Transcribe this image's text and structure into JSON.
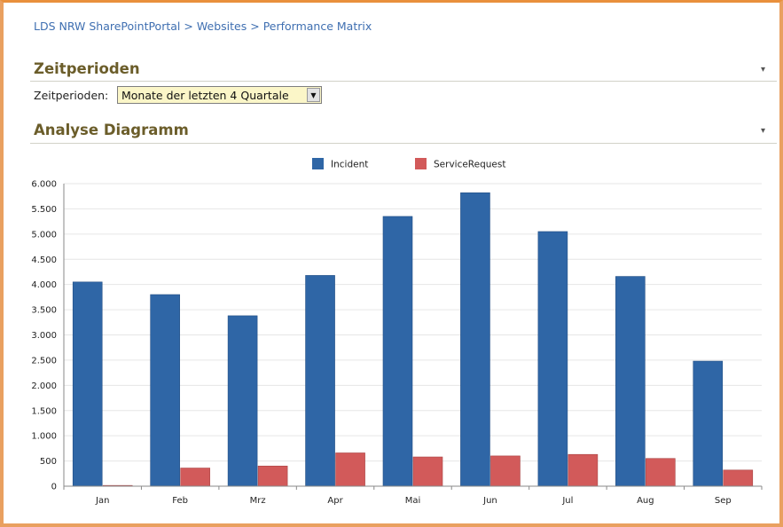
{
  "breadcrumb": [
    "LDS NRW SharePointPortal",
    "Websites",
    "Performance Matrix"
  ],
  "breadcrumb_separator": ">",
  "sections": {
    "periods": {
      "title": "Zeitperioden",
      "collapse_glyph": "▾"
    },
    "analysis": {
      "title": "Analyse Diagramm",
      "collapse_glyph": "▾"
    }
  },
  "period_filter": {
    "label": "Zeitperioden:",
    "selected": "Monate der letzten 4 Quartale"
  },
  "colors": {
    "incident": "#2f66a6",
    "service_request": "#d25a5a",
    "grid": "#e6e6e6",
    "axis": "#8a8a8a"
  },
  "chart_data": {
    "type": "bar",
    "categories": [
      "Jan",
      "Feb",
      "Mrz",
      "Apr",
      "Mai",
      "Jun",
      "Jul",
      "Aug",
      "Sep"
    ],
    "series": [
      {
        "name": "Incident",
        "values": [
          4050,
          3800,
          3380,
          4180,
          5350,
          5820,
          5050,
          4160,
          2480
        ]
      },
      {
        "name": "ServiceRequest",
        "values": [
          15,
          360,
          400,
          660,
          580,
          600,
          630,
          550,
          320
        ]
      }
    ],
    "ylim": [
      0,
      6000
    ],
    "yticks": [
      0,
      500,
      1000,
      1500,
      2000,
      2500,
      3000,
      3500,
      4000,
      4500,
      5000,
      5500,
      6000
    ],
    "ytick_labels": [
      "0",
      "500",
      "1.000",
      "1.500",
      "2.000",
      "2.500",
      "3.000",
      "3.500",
      "4.000",
      "4.500",
      "5.000",
      "5.500",
      "6.000"
    ],
    "legend_position": "top-center",
    "grid": true
  }
}
